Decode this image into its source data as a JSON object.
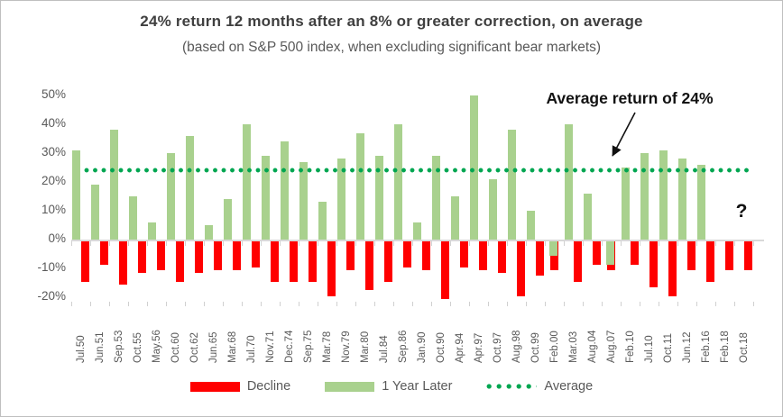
{
  "title": "24% return 12 months after an 8% or greater correction, on average",
  "subtitle": "(based on S&P 500 index, when excluding significant bear markets)",
  "annotation": {
    "text": "Average return of 24%",
    "unknown_marker": "?"
  },
  "legend": {
    "decline": "Decline",
    "one_year_later": "1 Year Later",
    "average": "Average"
  },
  "colors": {
    "decline": "#FF0000",
    "one_year_later": "#A9D18E",
    "average_line": "#00A651",
    "axis_text": "#595959",
    "title_text": "#3F3F3F",
    "zero_line": "#D9D9D9"
  },
  "chart_data": {
    "type": "bar",
    "title": "24% return 12 months after an 8% or greater correction, on average",
    "subtitle": "(based on S&P 500 index, when excluding significant bear markets)",
    "categories": [
      "Jul.50",
      "Jun.51",
      "Sep.53",
      "Oct.55",
      "May.56",
      "Oct.60",
      "Oct.62",
      "Jun.65",
      "Mar.68",
      "Jul.70",
      "Nov.71",
      "Dec.74",
      "Sep.75",
      "Mar.78",
      "Nov.79",
      "Mar.80",
      "Jul.84",
      "Sep.86",
      "Jan.90",
      "Oct.90",
      "Apr.94",
      "Apr.97",
      "Oct.97",
      "Aug.98",
      "Oct.99",
      "Feb.00",
      "Mar.03",
      "Aug.04",
      "Aug.07",
      "Feb.10",
      "Jul.10",
      "Oct.11",
      "Jun.12",
      "Feb.16",
      "Feb.18",
      "Oct.18"
    ],
    "series": [
      {
        "name": "Decline",
        "values": [
          -14,
          -8,
          -15,
          -11,
          -10,
          -14,
          -11,
          -10,
          -10,
          -9,
          -14,
          -14,
          -14,
          -19,
          -10,
          -17,
          -14,
          -9,
          -10,
          -20,
          -9,
          -10,
          -11,
          -19,
          -12,
          -10,
          -14,
          -8,
          -10,
          -8,
          -16,
          -19,
          -10,
          -14,
          -10,
          -10
        ]
      },
      {
        "name": "1 Year Later",
        "values": [
          31,
          19,
          38,
          15,
          6,
          30,
          36,
          5,
          14,
          40,
          29,
          34,
          27,
          13,
          28,
          37,
          29,
          40,
          6,
          29,
          15,
          50,
          21,
          38,
          10,
          -5,
          40,
          16,
          -8,
          25,
          30,
          31,
          28,
          26,
          null,
          null
        ]
      }
    ],
    "average_line": 24,
    "ylim": [
      -20,
      50
    ],
    "ytick_values": [
      50,
      40,
      30,
      20,
      10,
      0,
      -10,
      -20
    ],
    "ytick_labels": [
      "50%",
      "40%",
      "30%",
      "20%",
      "10%",
      "0%",
      "-10%",
      "-20%"
    ],
    "grid": false,
    "legend_position": "bottom"
  }
}
